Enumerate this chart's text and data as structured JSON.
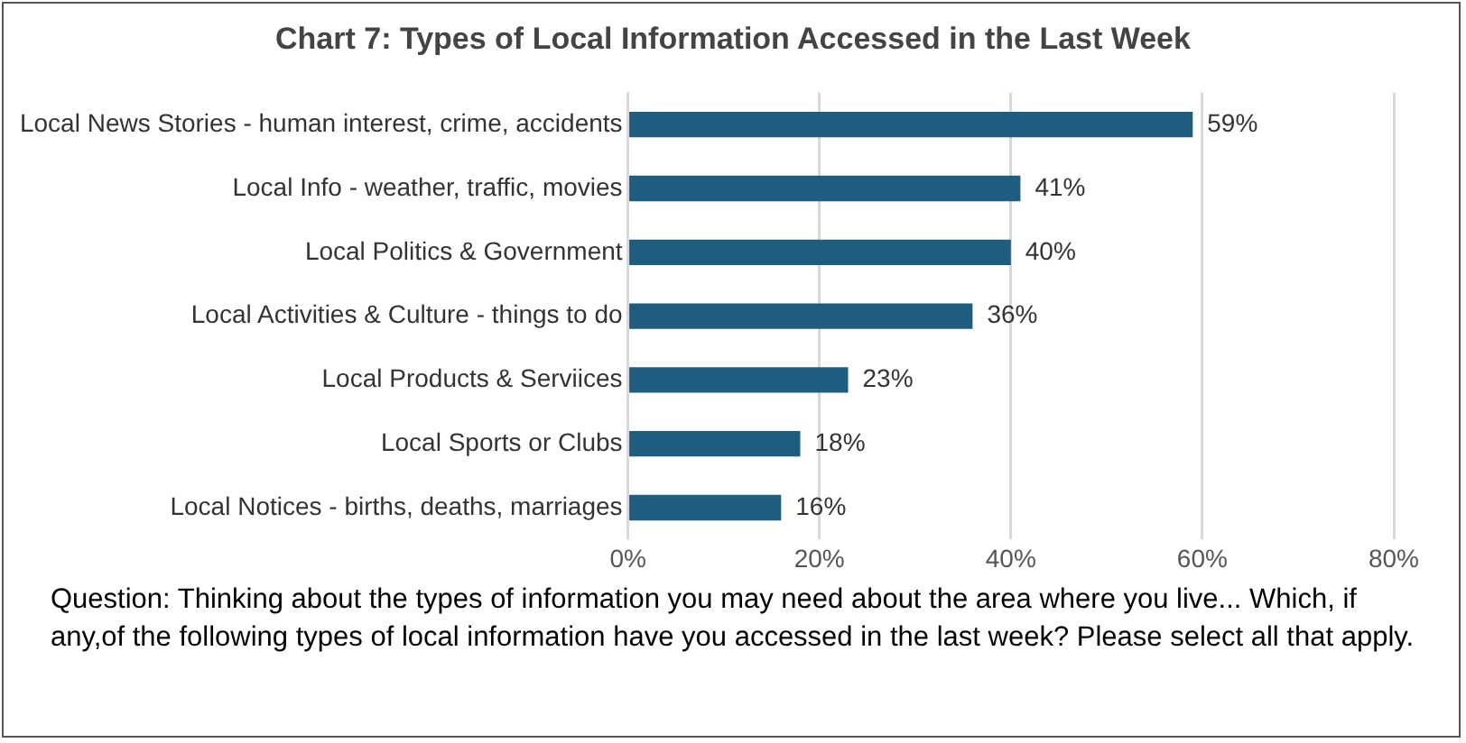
{
  "chart_data": {
    "type": "bar",
    "orientation": "horizontal",
    "title": "Chart 7: Types of Local Information Accessed in the Last Week",
    "categories": [
      "Local News Stories - human interest, crime, accidents",
      "Local Info - weather, traffic, movies",
      "Local Politics & Government",
      "Local Activities & Culture - things to do",
      "Local Products & Serviices",
      "Local Sports or Clubs",
      "Local Notices - births, deaths, marriages"
    ],
    "values": [
      59,
      41,
      40,
      36,
      23,
      18,
      16
    ],
    "value_labels": [
      "59%",
      "41%",
      "40%",
      "36%",
      "23%",
      "18%",
      "16%"
    ],
    "color": "#1f5d7e",
    "xlim": [
      0,
      80
    ],
    "xticks": [
      {
        "value": 0,
        "label": "0%"
      },
      {
        "value": 20,
        "label": "20%"
      },
      {
        "value": 40,
        "label": "40%"
      },
      {
        "value": 60,
        "label": "60%"
      },
      {
        "value": 80,
        "label": "80%"
      }
    ],
    "grid": "x",
    "legend": false,
    "annotations": [
      "Question: Thinking about the types of information you may need about the area where you live... Which, if any,of the following types of local information have you accessed in the last week? Please select all that apply."
    ]
  }
}
